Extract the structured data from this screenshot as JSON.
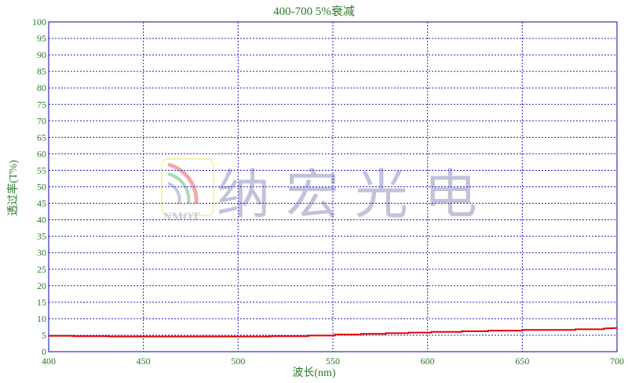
{
  "chart_data": {
    "type": "line",
    "title": "400-700 5%衰减",
    "xlabel": "波长(nm)",
    "ylabel": "透过率(T%)",
    "xlim": [
      400,
      700
    ],
    "ylim": [
      0,
      100
    ],
    "xticks": [
      400,
      450,
      500,
      550,
      600,
      650,
      700
    ],
    "yticks": [
      0,
      5,
      10,
      15,
      20,
      25,
      30,
      35,
      40,
      45,
      50,
      55,
      60,
      65,
      70,
      75,
      80,
      85,
      90,
      95,
      100
    ],
    "grid": true,
    "series": [
      {
        "color": "#e00000",
        "x": [
          400,
          413,
          413,
          432,
          432,
          517,
          517,
          537,
          537,
          551,
          551,
          565,
          565,
          578,
          578,
          590,
          590,
          602,
          602,
          618,
          618,
          632,
          632,
          650,
          650,
          678,
          678,
          693,
          693,
          700
        ],
        "y": [
          4.8,
          4.8,
          4.7,
          4.7,
          4.6,
          4.6,
          4.7,
          4.7,
          4.9,
          4.9,
          5.2,
          5.2,
          5.4,
          5.4,
          5.6,
          5.6,
          5.8,
          5.8,
          6.0,
          6.0,
          6.2,
          6.2,
          6.4,
          6.4,
          6.6,
          6.6,
          6.8,
          6.8,
          7.0,
          7.2
        ]
      }
    ],
    "watermark": {
      "logo_text": "NMOT",
      "text": "纳宏光电"
    },
    "colors": {
      "grid": "#2020c0",
      "axis": "#3030b0",
      "text": "#2a7a2a",
      "line": "#e00000"
    }
  }
}
